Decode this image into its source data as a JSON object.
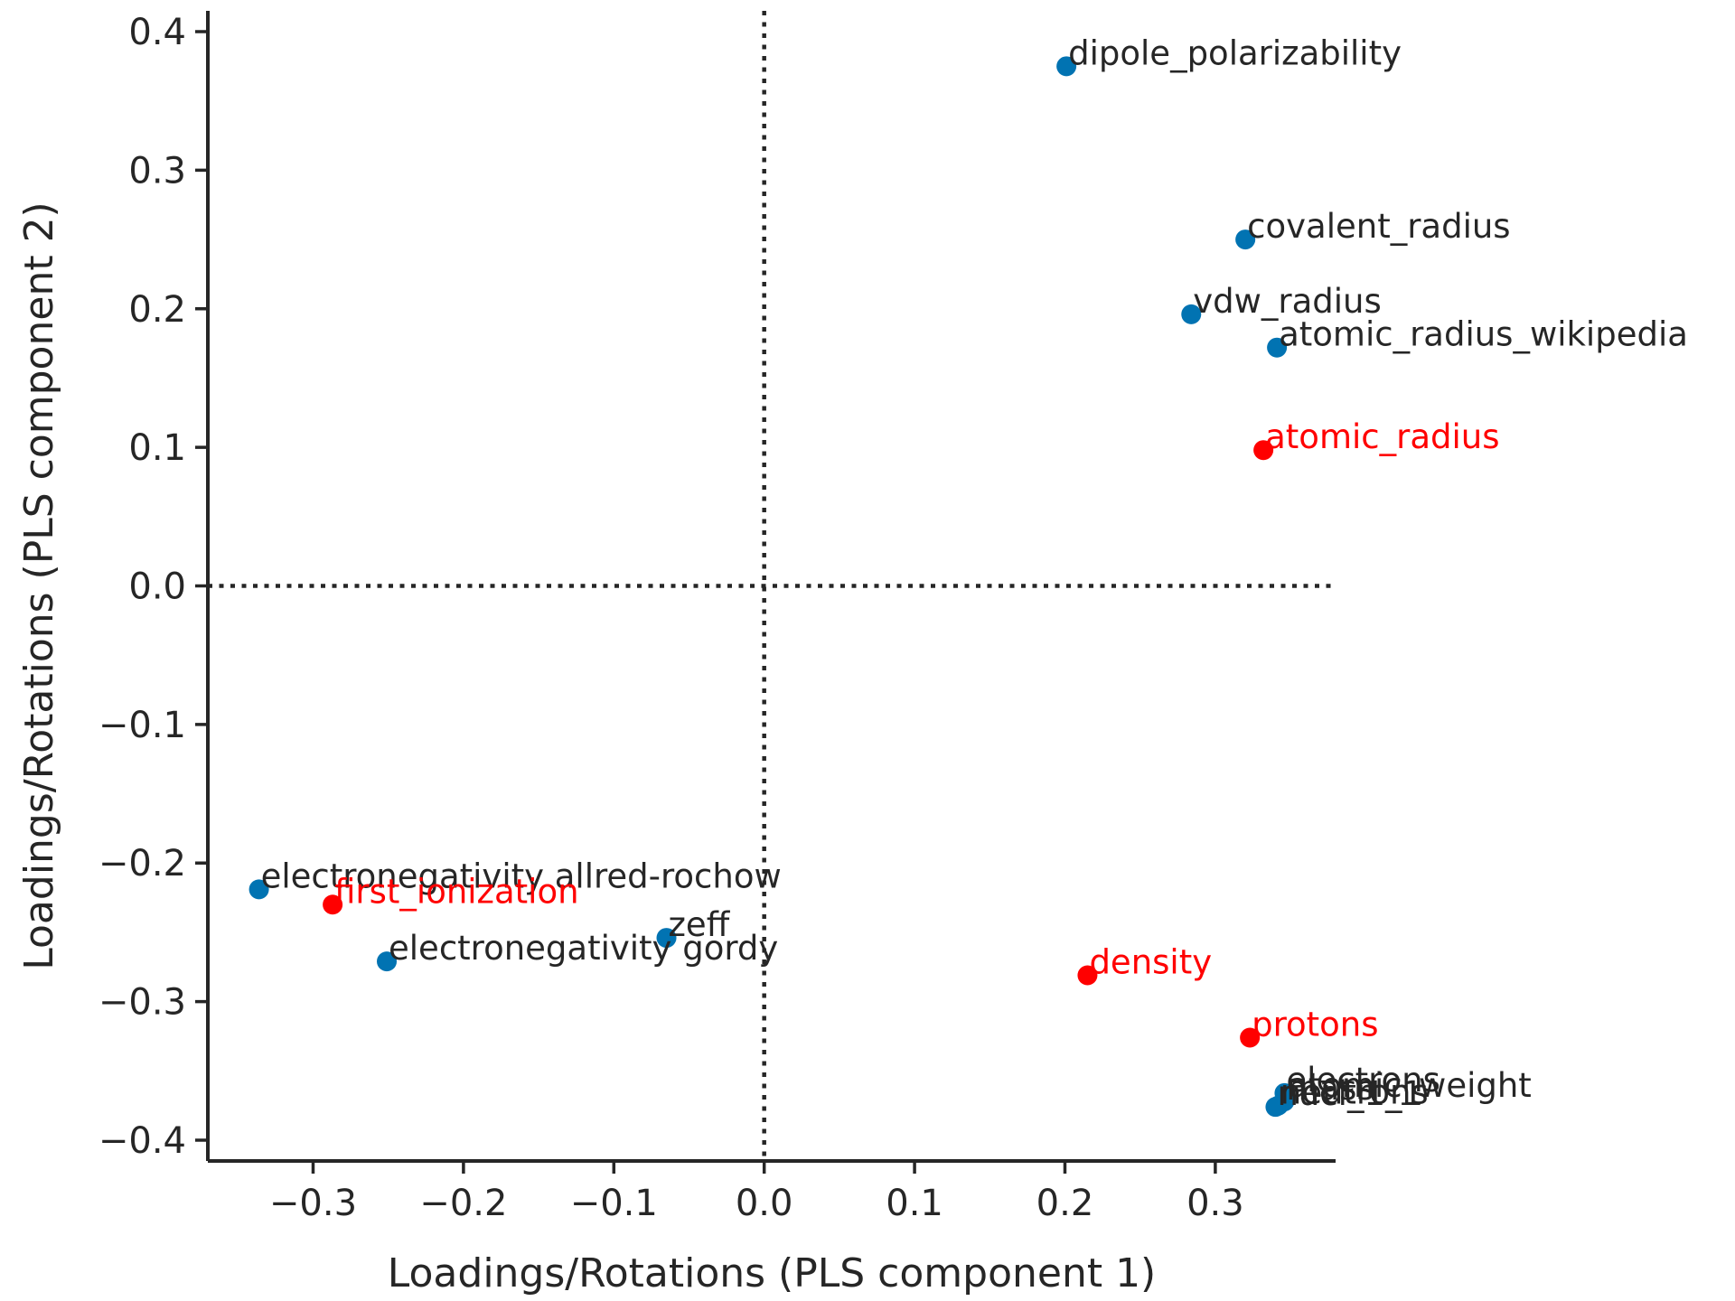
{
  "chart_data": {
    "type": "scatter",
    "xlabel": "Loadings/Rotations (PLS component 1)",
    "ylabel": "Loadings/Rotations (PLS component 2)",
    "xlim": [
      -0.37,
      0.38
    ],
    "ylim": [
      -0.415,
      0.415
    ],
    "xticks": [
      {
        "value": -0.3,
        "label": "−0.3"
      },
      {
        "value": -0.2,
        "label": "−0.2"
      },
      {
        "value": -0.1,
        "label": "−0.1"
      },
      {
        "value": 0.0,
        "label": "0.0"
      },
      {
        "value": 0.1,
        "label": "0.1"
      },
      {
        "value": 0.2,
        "label": "0.2"
      },
      {
        "value": 0.3,
        "label": "0.3"
      }
    ],
    "yticks": [
      {
        "value": 0.4,
        "label": "0.4"
      },
      {
        "value": 0.3,
        "label": "0.3"
      },
      {
        "value": 0.2,
        "label": "0.2"
      },
      {
        "value": 0.1,
        "label": "0.1"
      },
      {
        "value": 0.0,
        "label": "0.0"
      },
      {
        "value": -0.1,
        "label": "−0.1"
      },
      {
        "value": -0.2,
        "label": "−0.2"
      },
      {
        "value": -0.3,
        "label": "−0.3"
      },
      {
        "value": -0.4,
        "label": "−0.4"
      }
    ],
    "reference_lines": {
      "x": 0.0,
      "y": 0.0,
      "style": "dotted"
    },
    "grid": false,
    "colors": {
      "predictor": "#0173b2",
      "target": "#ff0000",
      "predictor_text": "#262626"
    },
    "points": [
      {
        "label": "dipole_polarizability",
        "x": 0.201,
        "y": 0.375,
        "group": "predictor"
      },
      {
        "label": "covalent_radius",
        "x": 0.32,
        "y": 0.25,
        "group": "predictor"
      },
      {
        "label": "vdw_radius",
        "x": 0.284,
        "y": 0.196,
        "group": "predictor"
      },
      {
        "label": "atomic_radius_wikipedia",
        "x": 0.341,
        "y": 0.172,
        "group": "predictor"
      },
      {
        "label": "atomic_radius",
        "x": 0.332,
        "y": 0.098,
        "group": "target"
      },
      {
        "label": "electronegativity allred-rochow",
        "x": -0.336,
        "y": -0.219,
        "group": "predictor"
      },
      {
        "label": "first_ionization",
        "x": -0.287,
        "y": -0.23,
        "group": "target"
      },
      {
        "label": "zeff",
        "x": -0.065,
        "y": -0.254,
        "group": "predictor"
      },
      {
        "label": "electronegativity gordy",
        "x": -0.251,
        "y": -0.271,
        "group": "predictor"
      },
      {
        "label": "density",
        "x": 0.215,
        "y": -0.281,
        "group": "target"
      },
      {
        "label": "protons",
        "x": 0.323,
        "y": -0.326,
        "group": "target"
      },
      {
        "label": "electrons",
        "x": 0.346,
        "y": -0.366,
        "group": "predictor"
      },
      {
        "label": "mass",
        "x": 0.346,
        "y": -0.372,
        "group": "predictor"
      },
      {
        "label": "atomic_weight",
        "x": 0.347,
        "y": -0.37,
        "group": "predictor"
      },
      {
        "label": "neutrons",
        "x": 0.342,
        "y": -0.375,
        "group": "predictor"
      },
      {
        "label": "nucl_1_1",
        "x": 0.34,
        "y": -0.376,
        "group": "predictor"
      }
    ]
  }
}
